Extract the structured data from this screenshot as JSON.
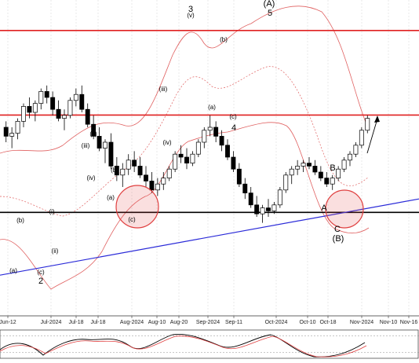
{
  "chart_data": {
    "type": "candlestick",
    "title": "",
    "xlabel": "",
    "ylabel": "",
    "x_ticks": [
      "Jun-12",
      "Jul-2024",
      "Jul-18",
      "Jul-18",
      "Aug-2024",
      "Aug-10",
      "Aug-20",
      "Sep-2024",
      "Sep-11",
      "Oct-2024",
      "Oct-10",
      "Oct-18",
      "Nov-2024",
      "Nov-10",
      "Nov-16"
    ],
    "grid": true,
    "horizontal_levels": [
      {
        "name": "resistance-upper",
        "color": "#e02020",
        "y_frac": 0.084
      },
      {
        "name": "resistance-middle",
        "color": "#e02020",
        "y_frac": 0.317
      },
      {
        "name": "support",
        "color": "#000000",
        "y_frac": 0.585
      }
    ],
    "trendline": {
      "color": "#2a2ad8",
      "from": [
        0,
        0.758
      ],
      "to": [
        1,
        0.548
      ]
    },
    "candles_ohlc": [
      [
        0.6,
        0.62,
        0.55,
        0.57
      ],
      [
        0.57,
        0.6,
        0.53,
        0.58
      ],
      [
        0.58,
        0.63,
        0.56,
        0.62
      ],
      [
        0.62,
        0.68,
        0.6,
        0.67
      ],
      [
        0.67,
        0.7,
        0.63,
        0.65
      ],
      [
        0.65,
        0.69,
        0.62,
        0.68
      ],
      [
        0.68,
        0.73,
        0.66,
        0.72
      ],
      [
        0.72,
        0.74,
        0.68,
        0.7
      ],
      [
        0.7,
        0.72,
        0.64,
        0.66
      ],
      [
        0.66,
        0.69,
        0.62,
        0.63
      ],
      [
        0.63,
        0.66,
        0.59,
        0.64
      ],
      [
        0.64,
        0.7,
        0.63,
        0.69
      ],
      [
        0.69,
        0.73,
        0.67,
        0.71
      ],
      [
        0.71,
        0.74,
        0.65,
        0.66
      ],
      [
        0.66,
        0.68,
        0.6,
        0.61
      ],
      [
        0.61,
        0.64,
        0.56,
        0.57
      ],
      [
        0.57,
        0.6,
        0.52,
        0.53
      ],
      [
        0.53,
        0.56,
        0.48,
        0.55
      ],
      [
        0.55,
        0.58,
        0.46,
        0.47
      ],
      [
        0.47,
        0.5,
        0.42,
        0.44
      ],
      [
        0.44,
        0.48,
        0.4,
        0.46
      ],
      [
        0.46,
        0.51,
        0.44,
        0.49
      ],
      [
        0.49,
        0.52,
        0.45,
        0.47
      ],
      [
        0.47,
        0.5,
        0.43,
        0.44
      ],
      [
        0.44,
        0.47,
        0.4,
        0.42
      ],
      [
        0.42,
        0.45,
        0.38,
        0.39
      ],
      [
        0.39,
        0.43,
        0.37,
        0.41
      ],
      [
        0.41,
        0.45,
        0.39,
        0.43
      ],
      [
        0.43,
        0.47,
        0.42,
        0.46
      ],
      [
        0.46,
        0.52,
        0.45,
        0.51
      ],
      [
        0.51,
        0.54,
        0.48,
        0.5
      ],
      [
        0.5,
        0.53,
        0.46,
        0.48
      ],
      [
        0.48,
        0.52,
        0.47,
        0.51
      ],
      [
        0.51,
        0.56,
        0.5,
        0.55
      ],
      [
        0.55,
        0.6,
        0.53,
        0.59
      ],
      [
        0.59,
        0.64,
        0.57,
        0.6
      ],
      [
        0.6,
        0.62,
        0.55,
        0.57
      ],
      [
        0.57,
        0.59,
        0.52,
        0.54
      ],
      [
        0.54,
        0.56,
        0.49,
        0.5
      ],
      [
        0.5,
        0.52,
        0.45,
        0.46
      ],
      [
        0.46,
        0.48,
        0.4,
        0.41
      ],
      [
        0.41,
        0.43,
        0.36,
        0.38
      ],
      [
        0.38,
        0.4,
        0.33,
        0.34
      ],
      [
        0.34,
        0.37,
        0.3,
        0.31
      ],
      [
        0.31,
        0.34,
        0.28,
        0.33
      ],
      [
        0.33,
        0.36,
        0.3,
        0.32
      ],
      [
        0.32,
        0.35,
        0.31,
        0.34
      ],
      [
        0.34,
        0.4,
        0.33,
        0.39
      ],
      [
        0.39,
        0.45,
        0.38,
        0.44
      ],
      [
        0.44,
        0.47,
        0.41,
        0.46
      ],
      [
        0.46,
        0.49,
        0.44,
        0.47
      ],
      [
        0.47,
        0.49,
        0.45,
        0.48
      ],
      [
        0.48,
        0.5,
        0.46,
        0.47
      ],
      [
        0.47,
        0.49,
        0.44,
        0.45
      ],
      [
        0.45,
        0.47,
        0.42,
        0.43
      ],
      [
        0.43,
        0.45,
        0.4,
        0.41
      ],
      [
        0.41,
        0.44,
        0.39,
        0.43
      ],
      [
        0.43,
        0.47,
        0.42,
        0.46
      ],
      [
        0.46,
        0.5,
        0.45,
        0.49
      ],
      [
        0.49,
        0.52,
        0.47,
        0.51
      ],
      [
        0.51,
        0.55,
        0.5,
        0.54
      ],
      [
        0.54,
        0.6,
        0.53,
        0.59
      ],
      [
        0.59,
        0.64,
        0.58,
        0.63
      ]
    ],
    "wave_labels": [
      "2",
      "(a)",
      "(b)",
      "(c)",
      "(i)",
      "(ii)",
      "(iii)",
      "(iv)",
      "(v)",
      "(a)",
      "(b)",
      "(c)",
      "(iii)",
      "(iv)",
      "(v)",
      "3",
      "(b)",
      "(a)",
      "(c)",
      "4",
      "(A)",
      "5",
      "A",
      "B",
      "C",
      "(B)"
    ],
    "oscillator": {
      "type": "stochastic",
      "levels": [
        0.2,
        0.8
      ]
    }
  }
}
